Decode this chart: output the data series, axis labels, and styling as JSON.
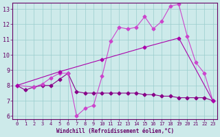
{
  "title": "",
  "xlabel": "Windchill (Refroidissement éolien,°C)",
  "ylabel": "",
  "bg_color": "#cdeaea",
  "line_color1": "#880088",
  "line_color2": "#cc44cc",
  "line_color3": "#aa00aa",
  "grid_color": "#99cccc",
  "axis_color": "#660066",
  "text_color": "#660066",
  "xlim": [
    -0.5,
    23.5
  ],
  "ylim": [
    5.8,
    13.4
  ],
  "xticks": [
    0,
    1,
    2,
    3,
    4,
    5,
    6,
    7,
    8,
    9,
    10,
    11,
    12,
    13,
    14,
    15,
    16,
    17,
    18,
    19,
    20,
    21,
    22,
    23
  ],
  "yticks": [
    6,
    7,
    8,
    9,
    10,
    11,
    12,
    13
  ],
  "line1_x": [
    0,
    1,
    2,
    3,
    4,
    5,
    6,
    7,
    8,
    9,
    10,
    11,
    12,
    13,
    14,
    15,
    16,
    17,
    18,
    19,
    20,
    21,
    22,
    23
  ],
  "line1_y": [
    8.0,
    7.7,
    7.9,
    8.0,
    8.0,
    8.4,
    8.8,
    7.6,
    7.5,
    7.5,
    7.5,
    7.5,
    7.5,
    7.5,
    7.5,
    7.4,
    7.4,
    7.3,
    7.3,
    7.2,
    7.2,
    7.2,
    7.2,
    7.0
  ],
  "line2_x": [
    0,
    2,
    3,
    4,
    5,
    6,
    7,
    8,
    9,
    10,
    11,
    12,
    13,
    14,
    15,
    16,
    17,
    18,
    19,
    20,
    21,
    22,
    23
  ],
  "line2_y": [
    8.0,
    7.9,
    8.1,
    8.5,
    8.8,
    8.8,
    6.0,
    6.5,
    6.7,
    8.6,
    10.9,
    11.8,
    11.7,
    11.8,
    12.5,
    11.7,
    12.2,
    13.2,
    13.3,
    11.2,
    9.5,
    8.8,
    7.0
  ],
  "line3_x": [
    0,
    5,
    10,
    15,
    19,
    23
  ],
  "line3_y": [
    8.0,
    8.9,
    9.7,
    10.5,
    11.1,
    7.0
  ],
  "marker": "D",
  "markersize": 2.5
}
